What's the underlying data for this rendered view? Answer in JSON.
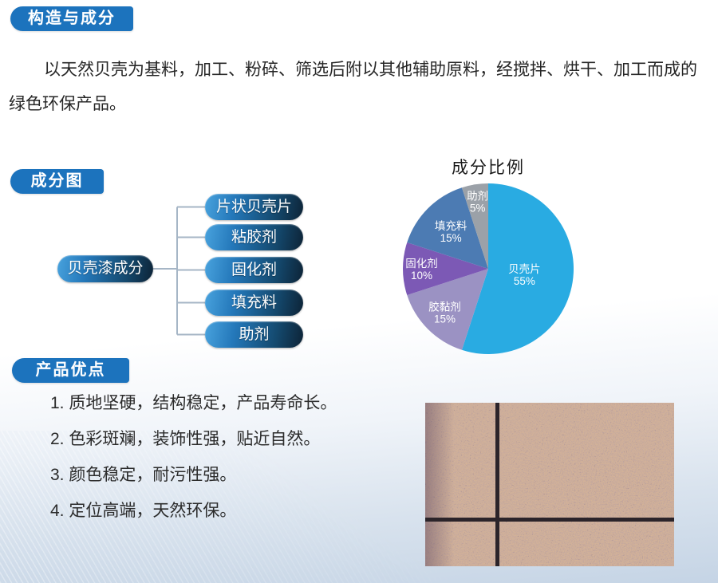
{
  "header": {
    "badge": "构造与成分"
  },
  "intro": {
    "full_text": "以天然贝壳为基料，加工、粉碎、筛选后附以其他辅助原料，经搅拌、烘干、加工而成的绿色环保产品。",
    "lines": [
      "以天然贝壳为基料，加工、粉碎、筛选后附以其他辅助原料，经搅拌、烘干、加工而成的",
      "绿色环保产品。"
    ]
  },
  "diagram_section": {
    "badge": "成分图",
    "tree": {
      "root": "贝壳漆成分",
      "children": [
        {
          "label": "片状贝壳片"
        },
        {
          "label": "粘胶剂"
        },
        {
          "label": "固化剂"
        },
        {
          "label": "填充料"
        },
        {
          "label": "助剂"
        }
      ]
    }
  },
  "chart_data": {
    "type": "pie",
    "title": "成分比例",
    "labels": [
      "贝壳片",
      "胶黏剂",
      "固化剂",
      "填充料",
      "助剂"
    ],
    "values": [
      55,
      15,
      10,
      15,
      5
    ],
    "unit": "%",
    "colors": [
      "#29abe2",
      "#9b92c3",
      "#7c59b5",
      "#4c7bb3",
      "#9ba1a8"
    ],
    "start_angle_deg": 0,
    "direction": "clockwise",
    "legend": "none",
    "label_style": "name and percent inside slices, white text",
    "label_r": [
      0.43,
      0.72,
      0.78,
      0.62,
      0.8
    ]
  },
  "advantages_section": {
    "badge": "产品优点",
    "items": [
      "1. 质地坚硬，结构稳定，产品寿命长。",
      "2. 色彩斑斓，装饰性强，贴近自然。",
      "3. 颜色稳定，耐污性强。",
      "4. 定位高端，天然环保。"
    ]
  },
  "sample_image": {
    "description": "speckled tan shell-paint sample panel with dark grout cross lines"
  },
  "colors": {
    "badge_blue": "#1c73bd",
    "node_gradient_start": "#49a3de",
    "node_gradient_end": "#0d2336",
    "connector_line": "#a6b6c6",
    "background_bottom": "#c5d4e5"
  }
}
